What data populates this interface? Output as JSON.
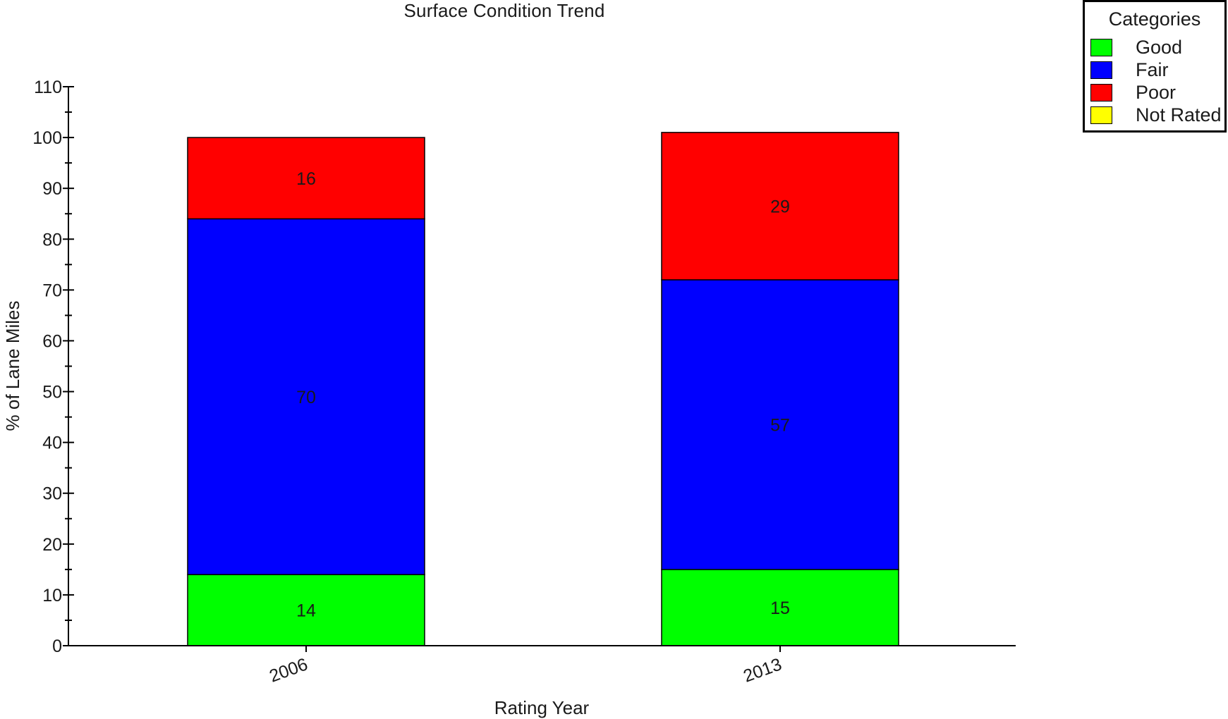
{
  "chart_data": {
    "type": "bar",
    "stacked": true,
    "title": "Surface Condition Trend",
    "xlabel": "Rating Year",
    "ylabel": "% of Lane Miles",
    "categories": [
      "2006",
      "2013"
    ],
    "series": [
      {
        "name": "Good",
        "color": "#00ff00",
        "values": [
          14,
          15
        ],
        "labels": [
          "14",
          "15"
        ]
      },
      {
        "name": "Fair",
        "color": "#0000ff",
        "values": [
          70,
          57
        ],
        "labels": [
          "70",
          "57"
        ]
      },
      {
        "name": "Poor",
        "color": "#ff0000",
        "values": [
          16,
          29
        ],
        "labels": [
          "16",
          "29"
        ]
      },
      {
        "name": "Not Rated",
        "color": "#ffff00",
        "values": [
          0,
          0
        ],
        "labels": [
          "",
          ""
        ]
      }
    ],
    "ylim": [
      0,
      110
    ],
    "yticks": [
      0,
      10,
      20,
      30,
      40,
      50,
      60,
      70,
      80,
      90,
      100,
      110
    ],
    "ytick_labels": [
      "0",
      "10",
      "20",
      "30",
      "40",
      "50",
      "60",
      "70",
      "80",
      "90",
      "100",
      "110"
    ],
    "grid": false,
    "legend": {
      "title": "Categories",
      "placement": "top-right"
    }
  }
}
